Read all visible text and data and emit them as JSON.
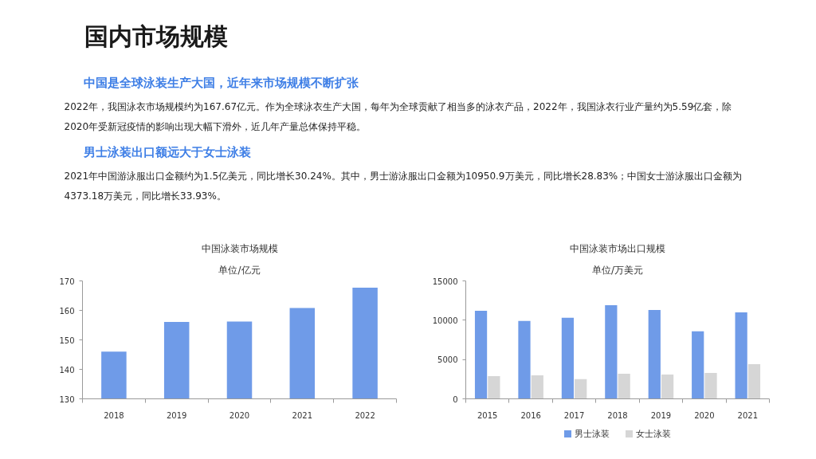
{
  "chart_data": [
    {
      "type": "other",
      "title": "国内市场规模",
      "annotations": [
        "中国是全球泳装生产大国，近年来市场规模不断扩张",
        "2022年，我国泳衣市场规模约为167.67亿元。作为全球泳衣生产大国，每年为全球贡献了相当多的泳衣产品，2022年，我国泳衣行业产量约为5.59亿套，除2020年受新冠疫情的影响出现大幅下滑外，近几年产量总体保持平稳。",
        "男士泳装出口额远大于女士泳装",
        "2021年中国游泳服出口金额约为1.5亿美元，同比增长30.24%。其中，男士游泳服出口金额为10950.9万美元，同比增长28.83%；中国女士游泳服出口金额为4373.18万美元，同比增长33.93%。"
      ]
    },
    {
      "type": "bar",
      "title": "中国泳装市场规模",
      "subtitle": "单位/亿元",
      "categories": [
        "2018",
        "2019",
        "2020",
        "2021",
        "2022"
      ],
      "values": [
        146.0,
        156.1,
        156.2,
        160.8,
        167.7
      ],
      "color": "#6f9be8",
      "ylim": [
        130,
        170
      ],
      "yticks": [
        130,
        140,
        150,
        160,
        170
      ]
    },
    {
      "type": "bar",
      "title": "中国泳装市场出口规模",
      "subtitle": "单位/万美元",
      "categories": [
        "2015",
        "2016",
        "2017",
        "2018",
        "2019",
        "2020",
        "2021"
      ],
      "series": [
        {
          "name": "男士泳装",
          "color": "#6f9be8",
          "values": [
            11200,
            9900,
            10300,
            11900,
            11300,
            8600,
            11000
          ]
        },
        {
          "name": "女士泳装",
          "color": "#d6d6d6",
          "values": [
            2900,
            3000,
            2500,
            3200,
            3100,
            3300,
            4400
          ]
        }
      ],
      "ylim": [
        0,
        15000
      ],
      "yticks": [
        0,
        5000,
        10000,
        15000
      ],
      "legend": "bottom"
    }
  ]
}
